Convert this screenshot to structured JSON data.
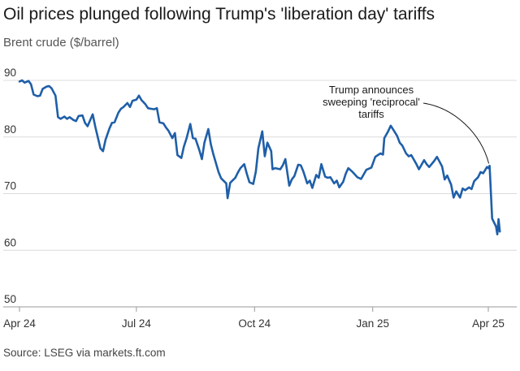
{
  "chart_data": {
    "type": "line",
    "title": "Oil prices plunged following Trump's 'liberation day' tariffs",
    "ylabel": "Brent crude ($/barrel)",
    "source": "Source: LSEG via markets.ft.com",
    "ylim": [
      50,
      90
    ],
    "yticks": [
      50,
      60,
      70,
      80,
      90
    ],
    "xticks": [
      {
        "label": "Apr 24",
        "date": "2024-04-01"
      },
      {
        "label": "Jul 24",
        "date": "2024-07-01"
      },
      {
        "label": "Oct 24",
        "date": "2024-10-01"
      },
      {
        "label": "Jan 25",
        "date": "2025-01-01"
      },
      {
        "label": "Apr 25",
        "date": "2025-04-01"
      }
    ],
    "grid": true,
    "series": [
      {
        "color": "#1f5fa8",
        "points": [
          [
            "2024-04-01",
            89.8
          ],
          [
            "2024-04-03",
            90.0
          ],
          [
            "2024-04-05",
            89.6
          ],
          [
            "2024-04-08",
            89.9
          ],
          [
            "2024-04-10",
            89.3
          ],
          [
            "2024-04-12",
            87.5
          ],
          [
            "2024-04-15",
            87.2
          ],
          [
            "2024-04-17",
            87.3
          ],
          [
            "2024-04-19",
            88.5
          ],
          [
            "2024-04-22",
            88.9
          ],
          [
            "2024-04-24",
            89.0
          ],
          [
            "2024-04-26",
            88.6
          ],
          [
            "2024-04-29",
            87.3
          ],
          [
            "2024-05-01",
            83.5
          ],
          [
            "2024-05-03",
            83.2
          ],
          [
            "2024-05-06",
            83.6
          ],
          [
            "2024-05-08",
            83.2
          ],
          [
            "2024-05-10",
            83.5
          ],
          [
            "2024-05-13",
            83.0
          ],
          [
            "2024-05-15",
            82.8
          ],
          [
            "2024-05-17",
            83.7
          ],
          [
            "2024-05-20",
            83.8
          ],
          [
            "2024-05-22",
            82.5
          ],
          [
            "2024-05-24",
            81.9
          ],
          [
            "2024-05-28",
            84.0
          ],
          [
            "2024-05-30",
            81.8
          ],
          [
            "2024-06-03",
            78.0
          ],
          [
            "2024-06-05",
            77.5
          ],
          [
            "2024-06-07",
            79.5
          ],
          [
            "2024-06-10",
            81.5
          ],
          [
            "2024-06-12",
            82.5
          ],
          [
            "2024-06-14",
            82.6
          ],
          [
            "2024-06-17",
            84.3
          ],
          [
            "2024-06-19",
            85.0
          ],
          [
            "2024-06-21",
            85.3
          ],
          [
            "2024-06-24",
            86.0
          ],
          [
            "2024-06-26",
            85.3
          ],
          [
            "2024-06-28",
            86.4
          ],
          [
            "2024-07-01",
            86.6
          ],
          [
            "2024-07-03",
            87.3
          ],
          [
            "2024-07-05",
            86.5
          ],
          [
            "2024-07-08",
            85.8
          ],
          [
            "2024-07-10",
            85.1
          ],
          [
            "2024-07-12",
            85.0
          ],
          [
            "2024-07-15",
            84.9
          ],
          [
            "2024-07-17",
            85.1
          ],
          [
            "2024-07-19",
            82.6
          ],
          [
            "2024-07-22",
            82.4
          ],
          [
            "2024-07-24",
            81.7
          ],
          [
            "2024-07-26",
            81.1
          ],
          [
            "2024-07-29",
            79.8
          ],
          [
            "2024-07-31",
            80.7
          ],
          [
            "2024-08-02",
            76.8
          ],
          [
            "2024-08-05",
            76.3
          ],
          [
            "2024-08-07",
            78.3
          ],
          [
            "2024-08-09",
            79.7
          ],
          [
            "2024-08-12",
            82.3
          ],
          [
            "2024-08-14",
            79.8
          ],
          [
            "2024-08-16",
            79.7
          ],
          [
            "2024-08-19",
            77.7
          ],
          [
            "2024-08-21",
            76.1
          ],
          [
            "2024-08-23",
            79.0
          ],
          [
            "2024-08-26",
            81.4
          ],
          [
            "2024-08-28",
            78.7
          ],
          [
            "2024-08-30",
            76.9
          ],
          [
            "2024-09-03",
            73.8
          ],
          [
            "2024-09-05",
            72.7
          ],
          [
            "2024-09-09",
            71.8
          ],
          [
            "2024-09-10",
            69.2
          ],
          [
            "2024-09-12",
            71.9
          ],
          [
            "2024-09-16",
            72.8
          ],
          [
            "2024-09-18",
            73.7
          ],
          [
            "2024-09-20",
            74.5
          ],
          [
            "2024-09-23",
            75.2
          ],
          [
            "2024-09-25",
            73.5
          ],
          [
            "2024-09-27",
            72.0
          ],
          [
            "2024-09-30",
            71.7
          ],
          [
            "2024-10-02",
            73.9
          ],
          [
            "2024-10-04",
            78.0
          ],
          [
            "2024-10-07",
            81.0
          ],
          [
            "2024-10-09",
            76.6
          ],
          [
            "2024-10-11",
            79.0
          ],
          [
            "2024-10-14",
            77.5
          ],
          [
            "2024-10-15",
            74.3
          ],
          [
            "2024-10-17",
            74.5
          ],
          [
            "2024-10-21",
            74.3
          ],
          [
            "2024-10-23",
            75.0
          ],
          [
            "2024-10-25",
            76.1
          ],
          [
            "2024-10-28",
            71.4
          ],
          [
            "2024-10-30",
            72.5
          ],
          [
            "2024-11-01",
            73.1
          ],
          [
            "2024-11-04",
            75.1
          ],
          [
            "2024-11-06",
            75.0
          ],
          [
            "2024-11-08",
            73.9
          ],
          [
            "2024-11-11",
            71.8
          ],
          [
            "2024-11-13",
            72.3
          ],
          [
            "2024-11-15",
            71.0
          ],
          [
            "2024-11-18",
            73.3
          ],
          [
            "2024-11-20",
            72.8
          ],
          [
            "2024-11-22",
            75.2
          ],
          [
            "2024-11-25",
            73.0
          ],
          [
            "2024-11-27",
            72.8
          ],
          [
            "2024-11-29",
            72.9
          ],
          [
            "2024-12-02",
            71.8
          ],
          [
            "2024-12-04",
            72.3
          ],
          [
            "2024-12-06",
            71.1
          ],
          [
            "2024-12-09",
            72.1
          ],
          [
            "2024-12-11",
            73.5
          ],
          [
            "2024-12-13",
            74.5
          ],
          [
            "2024-12-16",
            73.9
          ],
          [
            "2024-12-18",
            73.4
          ],
          [
            "2024-12-20",
            72.9
          ],
          [
            "2024-12-23",
            72.6
          ],
          [
            "2024-12-27",
            74.2
          ],
          [
            "2024-12-31",
            74.6
          ],
          [
            "2025-01-03",
            76.5
          ],
          [
            "2025-01-07",
            77.1
          ],
          [
            "2025-01-09",
            76.9
          ],
          [
            "2025-01-10",
            79.8
          ],
          [
            "2025-01-13",
            81.0
          ],
          [
            "2025-01-15",
            82.0
          ],
          [
            "2025-01-17",
            81.3
          ],
          [
            "2025-01-20",
            80.2
          ],
          [
            "2025-01-22",
            79.0
          ],
          [
            "2025-01-24",
            78.5
          ],
          [
            "2025-01-27",
            77.1
          ],
          [
            "2025-01-29",
            76.6
          ],
          [
            "2025-01-31",
            76.8
          ],
          [
            "2025-02-04",
            75.2
          ],
          [
            "2025-02-06",
            74.3
          ],
          [
            "2025-02-10",
            75.9
          ],
          [
            "2025-02-12",
            75.2
          ],
          [
            "2025-02-14",
            74.7
          ],
          [
            "2025-02-18",
            75.8
          ],
          [
            "2025-02-20",
            76.5
          ],
          [
            "2025-02-24",
            74.8
          ],
          [
            "2025-02-26",
            72.5
          ],
          [
            "2025-02-28",
            73.2
          ],
          [
            "2025-03-03",
            71.6
          ],
          [
            "2025-03-05",
            69.3
          ],
          [
            "2025-03-07",
            70.4
          ],
          [
            "2025-03-10",
            69.3
          ],
          [
            "2025-03-12",
            70.9
          ],
          [
            "2025-03-14",
            70.6
          ],
          [
            "2025-03-17",
            71.1
          ],
          [
            "2025-03-19",
            70.8
          ],
          [
            "2025-03-21",
            72.2
          ],
          [
            "2025-03-24",
            72.9
          ],
          [
            "2025-03-26",
            73.8
          ],
          [
            "2025-03-28",
            73.6
          ],
          [
            "2025-03-31",
            74.7
          ],
          [
            "2025-04-01",
            74.5
          ],
          [
            "2025-04-02",
            74.9
          ],
          [
            "2025-04-03",
            70.1
          ],
          [
            "2025-04-04",
            65.6
          ],
          [
            "2025-04-07",
            64.2
          ],
          [
            "2025-04-08",
            62.8
          ],
          [
            "2025-04-09",
            65.5
          ],
          [
            "2025-04-10",
            63.3
          ]
        ]
      }
    ],
    "annotation": {
      "lines": [
        "Trump announces",
        "sweeping 'reciprocal'",
        "tariffs"
      ],
      "date": "2025-04-02",
      "value": 74.9
    }
  }
}
